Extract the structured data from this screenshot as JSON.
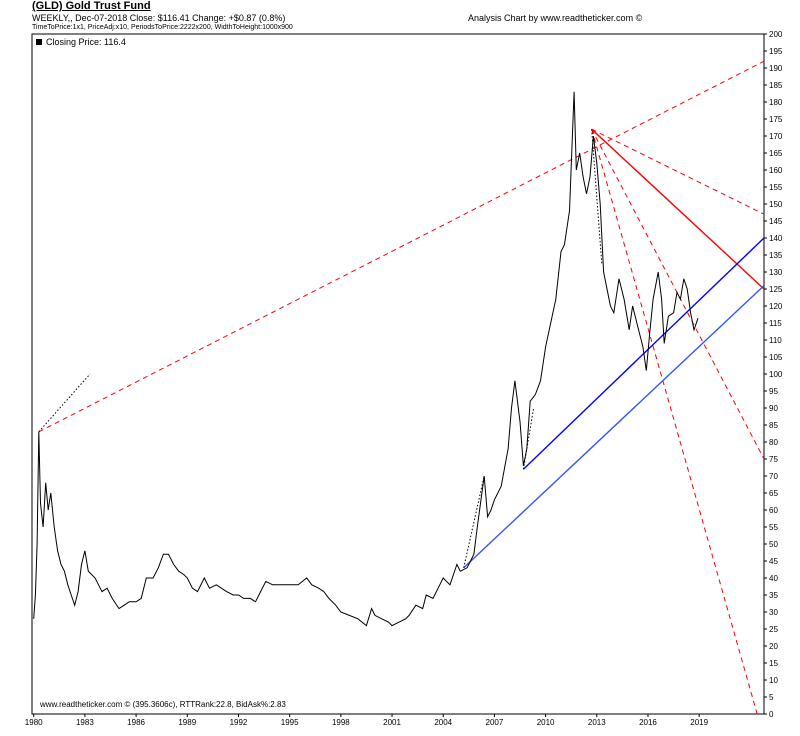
{
  "header": {
    "title": "(GLD) Gold Trust Fund",
    "subtitle": "WEEKLY,, Dec-07-2018  Close: $116.41  Change: +$0.87  (0.8%)",
    "params": "TimeToPrice:1x1, PriceAdj:x10, PeriodsToPrice:2222x200, WidthToHeight:1000x900",
    "brand": "Analysis Chart by www.readtheticker.com ©"
  },
  "legend": {
    "label": "Closing Price: 116.4"
  },
  "footer": {
    "text": "www.readtheticker.com © (395.3606c), RTTRank:22.8, BidAsk%:2.83"
  },
  "colors": {
    "price": "#000000",
    "red": "#ff0000",
    "blue": "#0000ff",
    "lightblue": "#3355ff"
  },
  "chart_data": {
    "type": "line",
    "title": "(GLD) Gold Trust Fund",
    "xlabel": "",
    "ylabel": "",
    "xlim": [
      1979.9,
      2022.8
    ],
    "ylim": [
      0,
      200
    ],
    "x_ticks": [
      "1980",
      "1983",
      "1986",
      "1989",
      "1992",
      "1995",
      "1998",
      "2001",
      "2004",
      "2007",
      "2010",
      "2013",
      "2016",
      "2019"
    ],
    "y_ticks": [
      0,
      5,
      10,
      15,
      20,
      25,
      30,
      35,
      40,
      45,
      50,
      55,
      60,
      65,
      70,
      75,
      80,
      85,
      90,
      95,
      100,
      105,
      110,
      115,
      120,
      125,
      130,
      135,
      140,
      145,
      150,
      155,
      160,
      165,
      170,
      175,
      180,
      185,
      190,
      195,
      200
    ],
    "grid": false,
    "series": [
      {
        "name": "Closing Price",
        "color": "#000000",
        "points": [
          [
            1980.0,
            28
          ],
          [
            1980.1,
            35
          ],
          [
            1980.2,
            50
          ],
          [
            1980.3,
            83
          ],
          [
            1980.4,
            62
          ],
          [
            1980.55,
            55
          ],
          [
            1980.7,
            68
          ],
          [
            1980.85,
            60
          ],
          [
            1981.0,
            65
          ],
          [
            1981.2,
            55
          ],
          [
            1981.4,
            48
          ],
          [
            1981.6,
            44
          ],
          [
            1981.8,
            42
          ],
          [
            1982.0,
            38
          ],
          [
            1982.2,
            35
          ],
          [
            1982.4,
            32
          ],
          [
            1982.6,
            36
          ],
          [
            1982.8,
            44
          ],
          [
            1983.0,
            48
          ],
          [
            1983.2,
            42
          ],
          [
            1983.4,
            41
          ],
          [
            1983.6,
            40
          ],
          [
            1983.8,
            38
          ],
          [
            1984.0,
            36
          ],
          [
            1984.3,
            37
          ],
          [
            1984.6,
            34
          ],
          [
            1985.0,
            31
          ],
          [
            1985.3,
            32
          ],
          [
            1985.6,
            33
          ],
          [
            1986.0,
            33
          ],
          [
            1986.3,
            34
          ],
          [
            1986.6,
            40
          ],
          [
            1987.0,
            40
          ],
          [
            1987.3,
            43
          ],
          [
            1987.6,
            47
          ],
          [
            1987.9,
            47
          ],
          [
            1988.2,
            44
          ],
          [
            1988.5,
            42
          ],
          [
            1988.8,
            41
          ],
          [
            1989.0,
            40
          ],
          [
            1989.3,
            37
          ],
          [
            1989.6,
            36
          ],
          [
            1990.0,
            40
          ],
          [
            1990.3,
            37
          ],
          [
            1990.7,
            38
          ],
          [
            1991.0,
            37
          ],
          [
            1991.3,
            36
          ],
          [
            1991.7,
            35
          ],
          [
            1992.0,
            35
          ],
          [
            1992.3,
            34
          ],
          [
            1992.7,
            34
          ],
          [
            1993.0,
            33
          ],
          [
            1993.3,
            36
          ],
          [
            1993.6,
            39
          ],
          [
            1994.0,
            38
          ],
          [
            1994.5,
            38
          ],
          [
            1995.0,
            38
          ],
          [
            1995.5,
            38
          ],
          [
            1996.0,
            40
          ],
          [
            1996.3,
            38
          ],
          [
            1996.7,
            37
          ],
          [
            1997.0,
            36
          ],
          [
            1997.3,
            34
          ],
          [
            1997.7,
            32
          ],
          [
            1998.0,
            30
          ],
          [
            1998.5,
            29
          ],
          [
            1999.0,
            28
          ],
          [
            1999.5,
            26
          ],
          [
            1999.8,
            31
          ],
          [
            2000.0,
            29
          ],
          [
            2000.4,
            28
          ],
          [
            2000.8,
            27
          ],
          [
            2001.0,
            26
          ],
          [
            2001.4,
            27
          ],
          [
            2001.8,
            28
          ],
          [
            2002.0,
            29
          ],
          [
            2002.4,
            32
          ],
          [
            2002.8,
            31
          ],
          [
            2003.0,
            35
          ],
          [
            2003.4,
            34
          ],
          [
            2003.8,
            38
          ],
          [
            2004.0,
            40
          ],
          [
            2004.4,
            38
          ],
          [
            2004.8,
            44
          ],
          [
            2005.0,
            42
          ],
          [
            2005.4,
            43
          ],
          [
            2005.8,
            47
          ],
          [
            2006.0,
            55
          ],
          [
            2006.4,
            70
          ],
          [
            2006.6,
            58
          ],
          [
            2006.8,
            60
          ],
          [
            2007.0,
            63
          ],
          [
            2007.4,
            67
          ],
          [
            2007.8,
            78
          ],
          [
            2008.0,
            90
          ],
          [
            2008.2,
            98
          ],
          [
            2008.5,
            86
          ],
          [
            2008.7,
            73
          ],
          [
            2008.9,
            78
          ],
          [
            2009.1,
            92
          ],
          [
            2009.4,
            94
          ],
          [
            2009.7,
            98
          ],
          [
            2010.0,
            108
          ],
          [
            2010.3,
            115
          ],
          [
            2010.6,
            122
          ],
          [
            2010.9,
            136
          ],
          [
            2011.1,
            138
          ],
          [
            2011.4,
            148
          ],
          [
            2011.67,
            183
          ],
          [
            2011.8,
            160
          ],
          [
            2012.0,
            165
          ],
          [
            2012.2,
            158
          ],
          [
            2012.4,
            153
          ],
          [
            2012.6,
            158
          ],
          [
            2012.8,
            170
          ],
          [
            2013.0,
            162
          ],
          [
            2013.2,
            150
          ],
          [
            2013.4,
            130
          ],
          [
            2013.6,
            125
          ],
          [
            2013.8,
            120
          ],
          [
            2014.0,
            118
          ],
          [
            2014.3,
            128
          ],
          [
            2014.6,
            122
          ],
          [
            2014.9,
            113
          ],
          [
            2015.1,
            120
          ],
          [
            2015.4,
            114
          ],
          [
            2015.7,
            108
          ],
          [
            2015.9,
            101
          ],
          [
            2016.1,
            112
          ],
          [
            2016.3,
            122
          ],
          [
            2016.6,
            130
          ],
          [
            2016.8,
            122
          ],
          [
            2016.95,
            109
          ],
          [
            2017.2,
            117
          ],
          [
            2017.5,
            118
          ],
          [
            2017.7,
            124
          ],
          [
            2017.9,
            122
          ],
          [
            2018.1,
            128
          ],
          [
            2018.3,
            125
          ],
          [
            2018.5,
            118
          ],
          [
            2018.7,
            113
          ],
          [
            2018.93,
            116.4
          ]
        ]
      }
    ],
    "trendlines": [
      {
        "color": "#ff0000",
        "style": "dashed",
        "from": [
          1980.3,
          83
        ],
        "to": [
          2022.8,
          192
        ]
      },
      {
        "color": "#000000",
        "style": "dotted",
        "from": [
          1980.3,
          83
        ],
        "to": [
          1983.3,
          100
        ]
      },
      {
        "color": "#ff0000",
        "style": "solid",
        "from": [
          2012.7,
          172
        ],
        "to": [
          2022.8,
          125
        ]
      },
      {
        "color": "#ff0000",
        "style": "dashed",
        "from": [
          2012.7,
          172
        ],
        "to": [
          2022.8,
          147
        ]
      },
      {
        "color": "#ff0000",
        "style": "dashed",
        "from": [
          2012.7,
          172
        ],
        "to": [
          2022.8,
          75
        ]
      },
      {
        "color": "#ff0000",
        "style": "dashed",
        "from": [
          2012.7,
          172
        ],
        "to": [
          2022.4,
          0
        ]
      },
      {
        "color": "#000000",
        "style": "dotted",
        "from": [
          2012.7,
          172
        ],
        "to": [
          2013.3,
          132
        ]
      },
      {
        "color": "#0000ff",
        "style": "solid",
        "from": [
          2008.7,
          72
        ],
        "to": [
          2022.8,
          140
        ]
      },
      {
        "color": "#3355ff",
        "style": "solid",
        "from": [
          2005.2,
          43
        ],
        "to": [
          2022.8,
          126
        ]
      },
      {
        "color": "#000000",
        "style": "dotted",
        "from": [
          2005.2,
          43
        ],
        "to": [
          2006.4,
          70
        ]
      },
      {
        "color": "#000000",
        "style": "dotted",
        "from": [
          2008.7,
          72
        ],
        "to": [
          2009.3,
          90
        ]
      }
    ]
  }
}
